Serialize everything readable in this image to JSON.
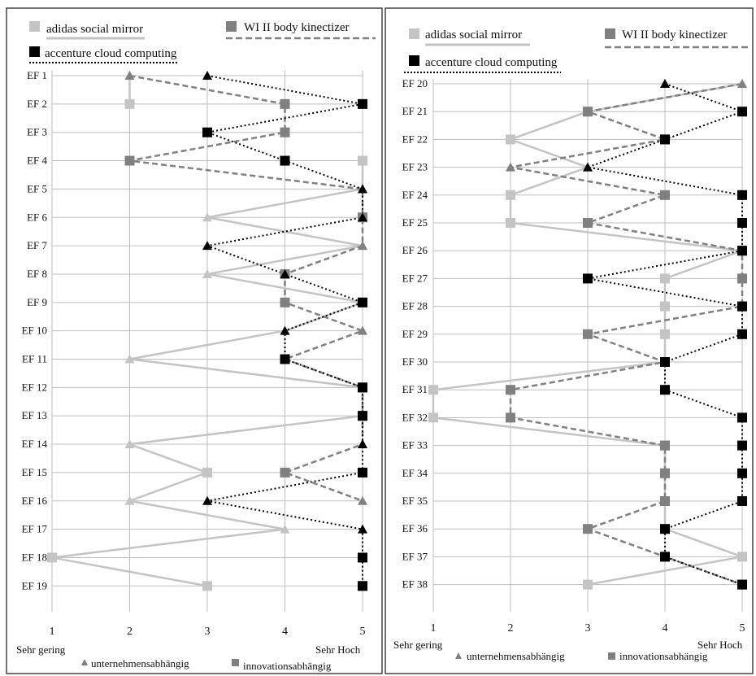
{
  "legend": {
    "adidas": "adidas social mirror",
    "wi": "WI II body kinectizer",
    "accenture": "accenture cloud computing"
  },
  "footer": {
    "low": "Sehr gering",
    "high": "Sehr Hoch",
    "triangle_label": "unternehmensabhängig",
    "square_label": "innovationsabhängig"
  },
  "colors": {
    "adidas": "#c4c4c4",
    "wi": "#808080",
    "accenture": "#000000",
    "grid": "#bdbdbd"
  },
  "chart_data": [
    {
      "type": "line",
      "orientation": "horizontal-profile",
      "categories": [
        "EF 1",
        "EF 2",
        "EF 3",
        "EF 4",
        "EF 5",
        "EF 6",
        "EF 7",
        "EF 8",
        "EF 9",
        "EF 10",
        "EF 11",
        "EF 12",
        "EF 13",
        "EF 14",
        "EF 15",
        "EF 16",
        "EF 17",
        "EF 18",
        "EF 19"
      ],
      "xlim": [
        1,
        5
      ],
      "xticks": [
        1,
        2,
        3,
        4,
        5
      ],
      "grid": true,
      "legend_position": "top",
      "series": [
        {
          "name": "adidas social mirror",
          "key": "adidas",
          "values": [
            2,
            2,
            null,
            5,
            5,
            3,
            5,
            3,
            5,
            4,
            2,
            5,
            5,
            2,
            3,
            2,
            4,
            1,
            3
          ],
          "markers": [
            "triangle",
            "square",
            "square",
            "square",
            "triangle",
            "triangle",
            "triangle",
            "triangle",
            "square",
            "triangle",
            "triangle",
            "square",
            "square",
            "triangle",
            "square",
            "triangle",
            "triangle",
            "square",
            "square"
          ]
        },
        {
          "name": "WI II body kinectizer",
          "key": "wi",
          "values": [
            2,
            4,
            4,
            2,
            5,
            5,
            5,
            4,
            4,
            5,
            4,
            5,
            5,
            5,
            4,
            5,
            null,
            null,
            null
          ],
          "markers": [
            "triangle",
            "square",
            "square",
            "square",
            "triangle",
            "square",
            "triangle",
            "square",
            "square",
            "triangle",
            "square",
            "square",
            "square",
            "triangle",
            "square",
            "triangle",
            null,
            null,
            null
          ]
        },
        {
          "name": "accenture cloud computing",
          "key": "accenture",
          "values": [
            3,
            5,
            3,
            4,
            5,
            5,
            3,
            4,
            5,
            4,
            4,
            5,
            5,
            5,
            5,
            3,
            5,
            5,
            5
          ],
          "markers": [
            "triangle",
            "square",
            "square",
            "square",
            "triangle",
            "triangle",
            "triangle",
            "triangle",
            "square",
            "triangle",
            "square",
            "square",
            "square",
            "triangle",
            "square",
            "triangle",
            "triangle",
            "square",
            "square"
          ]
        }
      ]
    },
    {
      "type": "line",
      "orientation": "horizontal-profile",
      "categories": [
        "EF 20",
        "EF 21",
        "EF 22",
        "EF 23",
        "EF 24",
        "EF 25",
        "EF 26",
        "EF 27",
        "EF 28",
        "EF 29",
        "EF 30",
        "EF 31",
        "EF 32",
        "EF 33",
        "EF 34",
        "EF 35",
        "EF 36",
        "EF 37",
        "EF 38"
      ],
      "xlim": [
        1,
        5
      ],
      "xticks": [
        1,
        2,
        3,
        4,
        5
      ],
      "grid": true,
      "legend_position": "top",
      "series": [
        {
          "name": "adidas social mirror",
          "key": "adidas",
          "values": [
            5,
            3,
            2,
            3,
            2,
            2,
            5,
            4,
            4,
            4,
            4,
            1,
            1,
            4,
            4,
            4,
            4,
            5,
            3
          ],
          "markers": [
            "triangle",
            "square",
            "square",
            "triangle",
            "square",
            "square",
            "square",
            "square",
            "square",
            "square",
            "square",
            "square",
            "square",
            "square",
            "square",
            "square",
            "square",
            "square",
            "square"
          ]
        },
        {
          "name": "WI II body kinectizer",
          "key": "wi",
          "values": [
            5,
            3,
            4,
            2,
            4,
            3,
            5,
            5,
            5,
            3,
            4,
            2,
            2,
            4,
            4,
            4,
            3,
            4,
            5
          ],
          "markers": [
            "triangle",
            "square",
            "square",
            "triangle",
            "square",
            "square",
            "square",
            "square",
            "square",
            "square",
            "square",
            "square",
            "square",
            "square",
            "square",
            "square",
            "square",
            "square",
            "square"
          ]
        },
        {
          "name": "accenture cloud computing",
          "key": "accenture",
          "values": [
            4,
            5,
            4,
            3,
            5,
            5,
            5,
            3,
            5,
            5,
            4,
            4,
            5,
            5,
            5,
            5,
            4,
            4,
            5
          ],
          "markers": [
            "triangle",
            "square",
            "square",
            "triangle",
            "square",
            "square",
            "square",
            "square",
            "square",
            "square",
            "square",
            "square",
            "square",
            "square",
            "square",
            "square",
            "square",
            "square",
            "square"
          ]
        }
      ]
    }
  ]
}
